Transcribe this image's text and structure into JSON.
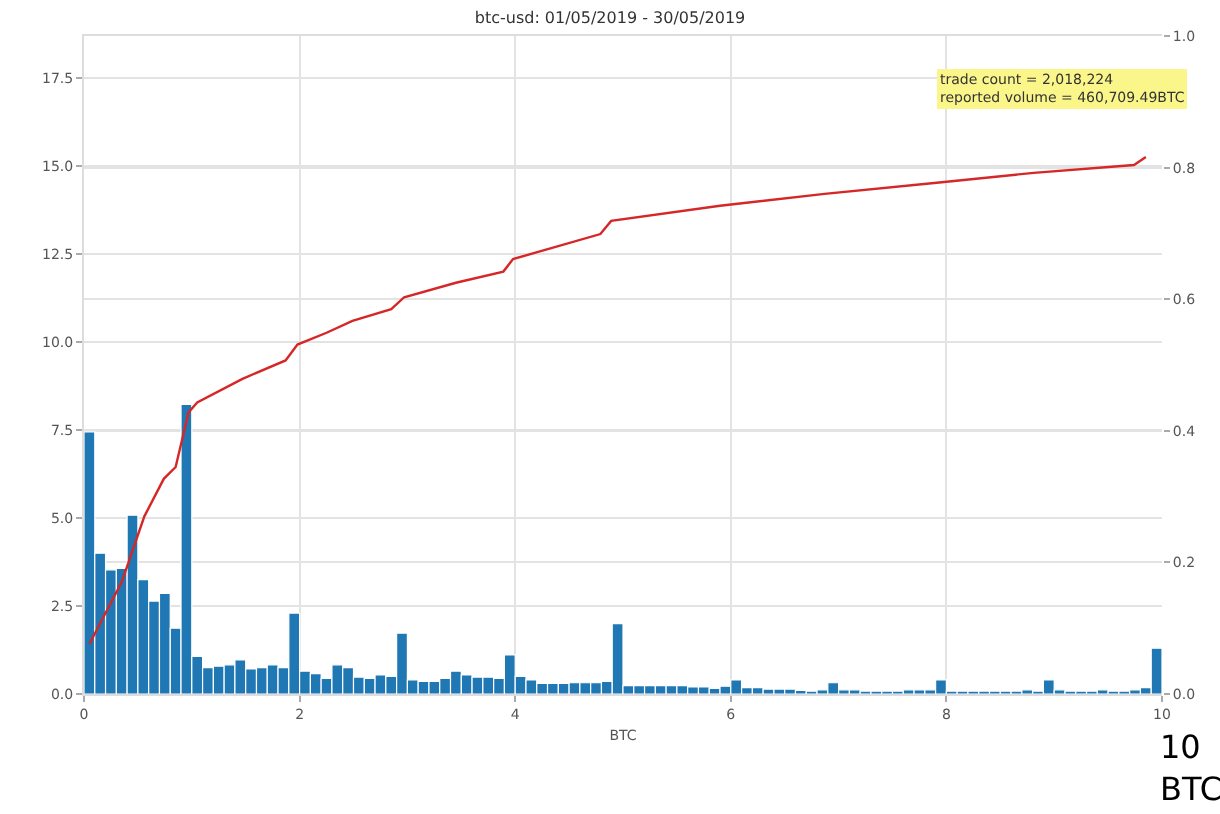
{
  "chart_data": {
    "type": "histogram",
    "title": "btc-usd: 01/05/2019 - 30/05/2019",
    "xlabel": "BTC",
    "bins": [
      0,
      0.1,
      0.2,
      0.3,
      0.4,
      0.5,
      0.6,
      0.7,
      0.8,
      0.9,
      1,
      1.1,
      1.2,
      1.3,
      1.4,
      1.5,
      1.6,
      1.7,
      1.8,
      1.9,
      2,
      2.1,
      2.2,
      2.3,
      2.4,
      2.5,
      2.6,
      2.7,
      2.8,
      2.9,
      3,
      3.1,
      3.2,
      3.3,
      3.4,
      3.5,
      3.6,
      3.7,
      3.8,
      3.9,
      4,
      4.1,
      4.2,
      4.3,
      4.4,
      4.5,
      4.6,
      4.7,
      4.8,
      4.9,
      5,
      5.1,
      5.2,
      5.3,
      5.4,
      5.5,
      5.6,
      5.7,
      5.8,
      5.9,
      6,
      6.1,
      6.2,
      6.3,
      6.4,
      6.5,
      6.6,
      6.7,
      6.8,
      6.9,
      7,
      7.1,
      7.2,
      7.3,
      7.4,
      7.5,
      7.6,
      7.7,
      7.8,
      7.9,
      8,
      8.1,
      8.2,
      8.3,
      8.4,
      8.5,
      8.6,
      8.7,
      8.8,
      8.9,
      9,
      9.1,
      9.2,
      9.3,
      9.4,
      9.5,
      9.6,
      9.7,
      9.8,
      9.9,
      10
    ],
    "values": [
      7.45,
      4.0,
      3.53,
      3.57,
      5.08,
      3.25,
      2.64,
      2.86,
      1.87,
      8.23,
      1.07,
      0.75,
      0.79,
      0.83,
      0.97,
      0.71,
      0.75,
      0.83,
      0.75,
      2.3,
      0.65,
      0.58,
      0.44,
      0.83,
      0.75,
      0.48,
      0.44,
      0.54,
      0.5,
      1.73,
      0.4,
      0.36,
      0.36,
      0.44,
      0.65,
      0.54,
      0.48,
      0.48,
      0.44,
      1.11,
      0.5,
      0.4,
      0.3,
      0.3,
      0.3,
      0.32,
      0.32,
      0.32,
      0.36,
      2.0,
      0.24,
      0.24,
      0.24,
      0.24,
      0.24,
      0.24,
      0.2,
      0.2,
      0.16,
      0.22,
      0.4,
      0.18,
      0.18,
      0.14,
      0.14,
      0.14,
      0.1,
      0.08,
      0.12,
      0.32,
      0.12,
      0.12,
      0.08,
      0.08,
      0.08,
      0.08,
      0.12,
      0.12,
      0.12,
      0.4,
      0.08,
      0.08,
      0.08,
      0.08,
      0.08,
      0.08,
      0.08,
      0.12,
      0.08,
      0.4,
      0.12,
      0.08,
      0.08,
      0.08,
      0.12,
      0.08,
      0.08,
      0.12,
      0.18,
      1.3
    ],
    "color": "#1f77b4",
    "series": [
      {
        "type": "line",
        "axis": "y2",
        "color": "#d62728",
        "x": [
          0.05,
          0.35,
          0.56,
          0.74,
          0.85,
          0.97,
          1.05,
          1.47,
          1.87,
          1.98,
          2.25,
          2.49,
          2.85,
          2.97,
          3.45,
          3.89,
          3.98,
          4.79,
          4.89,
          5.9,
          6.87,
          7.91,
          8.81,
          9.74,
          9.85
        ],
        "values": [
          0.076,
          0.17,
          0.27,
          0.327,
          0.345,
          0.428,
          0.443,
          0.479,
          0.507,
          0.531,
          0.549,
          0.567,
          0.585,
          0.603,
          0.625,
          0.642,
          0.661,
          0.699,
          0.719,
          0.742,
          0.76,
          0.777,
          0.792,
          0.804,
          0.816
        ]
      }
    ],
    "xlim": [
      0,
      10
    ],
    "xticks": [
      0,
      2,
      4,
      6,
      8,
      10
    ],
    "ylim": [
      0,
      18.7
    ],
    "yticks": [
      {
        "value": 0,
        "label": "0.0"
      },
      2.5,
      {
        "value": 5,
        "label": "5.0"
      },
      7.5,
      {
        "value": 10,
        "label": "10.0"
      },
      12.5,
      {
        "value": 15,
        "label": "15.0"
      },
      17.5
    ],
    "y2lim": [
      0,
      1
    ],
    "y2ticks": [
      {
        "value": 0,
        "label": "0.0"
      },
      0.2,
      0.4,
      0.6,
      0.8,
      {
        "value": 1,
        "label": "1.0"
      }
    ],
    "grid": true,
    "annotations": [
      "trade count = 2,018,224\nreported volume = 460,709.49BTC",
      "10\nBTC"
    ]
  }
}
